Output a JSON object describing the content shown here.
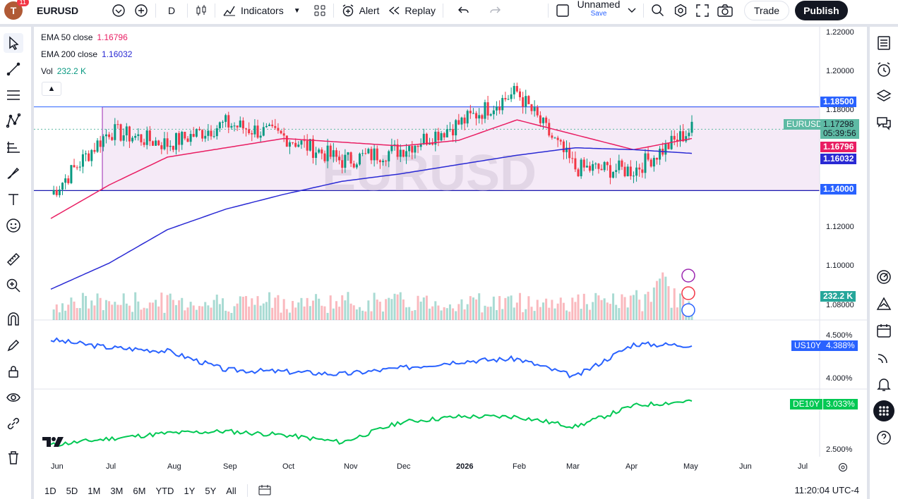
{
  "topbar": {
    "avatar_letter": "T",
    "avatar_badge": "11",
    "symbol": "EURUSD",
    "interval": "D",
    "indicators_label": "Indicators",
    "alert_label": "Alert",
    "replay_label": "Replay",
    "layout_name": "Unnamed",
    "layout_save": "Save",
    "trade_label": "Trade",
    "publish_label": "Publish"
  },
  "legend": {
    "ema50_label": "EMA 50 close",
    "ema50_value": "1.16796",
    "ema200_label": "EMA 200 close",
    "ema200_value": "1.16032",
    "vol_label": "Vol",
    "vol_value": "232.2 K"
  },
  "watermark": "EURUSD",
  "price_axis": [
    "1.22000",
    "1.20000",
    "1.18000",
    "1.12000",
    "1.10000",
    "1.08000"
  ],
  "price_tags": {
    "upper_level": "1.18500",
    "symbol_tag": "EURUSD",
    "last_price": "1.17298",
    "countdown": "05:39:56",
    "ema50": "1.16796",
    "ema200": "1.16032",
    "lower_level": "1.14000",
    "volume": "232.2 K"
  },
  "us10y": {
    "label": "US10Y",
    "value": "4.388%",
    "axis": [
      "4.500%",
      "4.000%"
    ]
  },
  "de10y": {
    "label": "DE10Y",
    "value": "3.033%",
    "axis": [
      "2.500%"
    ]
  },
  "time_axis": [
    "Jun",
    "Jul",
    "Aug",
    "Sep",
    "Oct",
    "Nov",
    "Dec",
    "2026",
    "Feb",
    "Mar",
    "Apr",
    "May",
    "Jun",
    "Jul"
  ],
  "ranges": [
    "1D",
    "5D",
    "1M",
    "3M",
    "6M",
    "YTD",
    "1Y",
    "5Y",
    "All"
  ],
  "clock": "11:20:04 UTC-4",
  "colors": {
    "ema50": "#e91e63",
    "ema200": "#2a2ad4",
    "up": "#089981",
    "down": "#f23645",
    "us10y": "#2962ff",
    "de10y": "#00c853",
    "range_box": "#9c27b0"
  },
  "chart_data": {
    "type": "line",
    "title": "EURUSD",
    "x": [
      "Jun",
      "Jul",
      "Aug",
      "Sep",
      "Oct",
      "Nov",
      "Dec",
      "2026",
      "Feb",
      "Mar",
      "Apr",
      "May"
    ],
    "series": [
      {
        "name": "EURUSD",
        "values": [
          1.138,
          1.172,
          1.165,
          1.176,
          1.169,
          1.156,
          1.162,
          1.176,
          1.193,
          1.152,
          1.151,
          1.173
        ]
      },
      {
        "name": "EMA 50 close",
        "values": [
          1.125,
          1.143,
          1.158,
          1.163,
          1.168,
          1.166,
          1.164,
          1.167,
          1.178,
          1.17,
          1.162,
          1.168
        ]
      },
      {
        "name": "EMA 200 close",
        "values": [
          1.087,
          1.101,
          1.119,
          1.13,
          1.138,
          1.145,
          1.149,
          1.154,
          1.159,
          1.163,
          1.162,
          1.16
        ]
      },
      {
        "name": "US10Y",
        "values": [
          4.45,
          4.36,
          4.32,
          4.1,
          4.08,
          4.05,
          4.12,
          4.2,
          4.23,
          4.02,
          4.4,
          4.388
        ]
      },
      {
        "name": "DE10Y",
        "values": [
          2.55,
          2.62,
          2.68,
          2.7,
          2.66,
          2.58,
          2.8,
          2.86,
          2.86,
          2.75,
          2.98,
          3.033
        ]
      }
    ],
    "levels": [
      1.185,
      1.14
    ],
    "ylim": [
      1.075,
      1.225
    ]
  }
}
